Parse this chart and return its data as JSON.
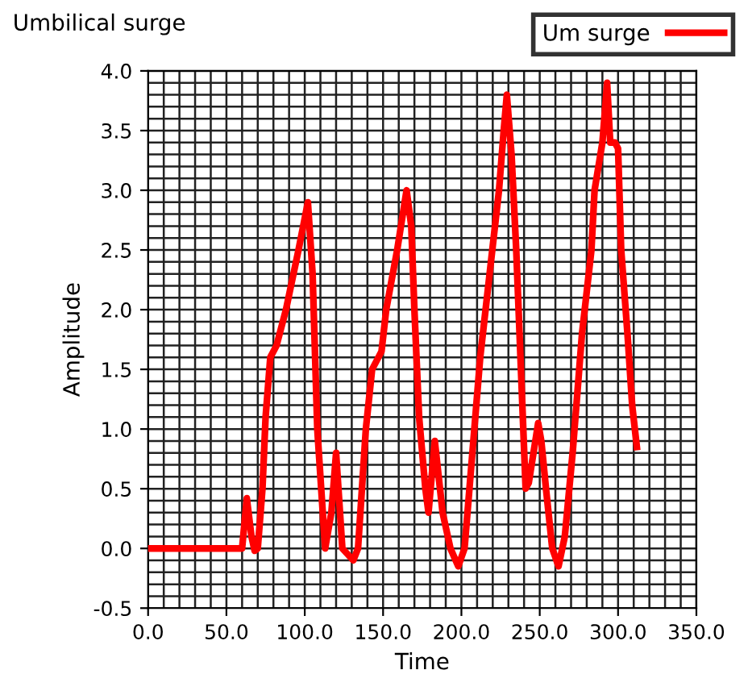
{
  "chart_data": {
    "type": "line",
    "title": "Umbilical surge",
    "xlabel": "Time",
    "ylabel": "Amplitude",
    "legend": "top right",
    "grid": true,
    "line_style": "solid",
    "marker": "none",
    "series": [
      {
        "name": "Um surge",
        "color": "#ff0000",
        "x": [
          0,
          60,
          63,
          66,
          68,
          70,
          73,
          75,
          78,
          82,
          88,
          96,
          102,
          105,
          108,
          111,
          113,
          117,
          120,
          124,
          131,
          134,
          139,
          143,
          149,
          152,
          159,
          165,
          168,
          170,
          173,
          177,
          179,
          183,
          188,
          193,
          198,
          202,
          207,
          212,
          218,
          224,
          227,
          229,
          232,
          235,
          238,
          241,
          243,
          249,
          251,
          254,
          258,
          262,
          266,
          271,
          277,
          283,
          285,
          290,
          293,
          295,
          298,
          300,
          302,
          306,
          309,
          312
        ],
        "values": [
          0,
          0,
          0.42,
          0.1,
          -0.02,
          0,
          0.5,
          1.1,
          1.6,
          1.7,
          2.0,
          2.5,
          2.9,
          2.3,
          1.0,
          0.4,
          0,
          0.3,
          0.8,
          0,
          -0.1,
          0,
          1.0,
          1.5,
          1.65,
          2.0,
          2.5,
          3.0,
          2.7,
          2.0,
          1.1,
          0.5,
          0.3,
          0.9,
          0.3,
          0,
          -0.15,
          0,
          0.8,
          1.6,
          2.3,
          3.0,
          3.5,
          3.8,
          3.3,
          2.5,
          1.5,
          0.5,
          0.55,
          1.05,
          0.9,
          0.5,
          0,
          -0.15,
          0.1,
          0.8,
          1.8,
          2.5,
          3.0,
          3.4,
          3.9,
          3.4,
          3.4,
          3.35,
          2.5,
          1.8,
          1.2,
          0.85
        ]
      }
    ],
    "xlim": [
      0,
      350
    ],
    "ylim": [
      -0.5,
      4.0
    ],
    "xticks": [
      {
        "value": 0,
        "label": "0.0"
      },
      {
        "value": 10,
        "label": null
      },
      {
        "value": 20,
        "label": null
      },
      {
        "value": 30,
        "label": null
      },
      {
        "value": 40,
        "label": null
      },
      {
        "value": 50,
        "label": "50.0"
      },
      {
        "value": 60,
        "label": null
      },
      {
        "value": 70,
        "label": null
      },
      {
        "value": 80,
        "label": null
      },
      {
        "value": 90,
        "label": null
      },
      {
        "value": 100,
        "label": "100.0"
      },
      {
        "value": 110,
        "label": null
      },
      {
        "value": 120,
        "label": null
      },
      {
        "value": 130,
        "label": null
      },
      {
        "value": 140,
        "label": null
      },
      {
        "value": 150,
        "label": "150.0"
      },
      {
        "value": 160,
        "label": null
      },
      {
        "value": 170,
        "label": null
      },
      {
        "value": 180,
        "label": null
      },
      {
        "value": 190,
        "label": null
      },
      {
        "value": 200,
        "label": "200.0"
      },
      {
        "value": 210,
        "label": null
      },
      {
        "value": 220,
        "label": null
      },
      {
        "value": 230,
        "label": null
      },
      {
        "value": 240,
        "label": null
      },
      {
        "value": 250,
        "label": "250.0"
      },
      {
        "value": 260,
        "label": null
      },
      {
        "value": 270,
        "label": null
      },
      {
        "value": 280,
        "label": null
      },
      {
        "value": 290,
        "label": null
      },
      {
        "value": 300,
        "label": "300.0"
      },
      {
        "value": 310,
        "label": null
      },
      {
        "value": 320,
        "label": null
      },
      {
        "value": 330,
        "label": null
      },
      {
        "value": 340,
        "label": null
      },
      {
        "value": 350,
        "label": "350.0"
      }
    ],
    "yticks": [
      {
        "value": -0.5,
        "label": "-0.5"
      },
      {
        "value": -0.4,
        "label": null
      },
      {
        "value": -0.3,
        "label": null
      },
      {
        "value": -0.2,
        "label": null
      },
      {
        "value": -0.1,
        "label": null
      },
      {
        "value": 0,
        "label": "0.0"
      },
      {
        "value": 0.1,
        "label": null
      },
      {
        "value": 0.2,
        "label": null
      },
      {
        "value": 0.3,
        "label": null
      },
      {
        "value": 0.4,
        "label": null
      },
      {
        "value": 0.5,
        "label": "0.5"
      },
      {
        "value": 0.6,
        "label": null
      },
      {
        "value": 0.7,
        "label": null
      },
      {
        "value": 0.8,
        "label": null
      },
      {
        "value": 0.9,
        "label": null
      },
      {
        "value": 1.0,
        "label": "1.0"
      },
      {
        "value": 1.1,
        "label": null
      },
      {
        "value": 1.2,
        "label": null
      },
      {
        "value": 1.3,
        "label": null
      },
      {
        "value": 1.4,
        "label": null
      },
      {
        "value": 1.5,
        "label": "1.5"
      },
      {
        "value": 1.6,
        "label": null
      },
      {
        "value": 1.7,
        "label": null
      },
      {
        "value": 1.8,
        "label": null
      },
      {
        "value": 1.9,
        "label": null
      },
      {
        "value": 2.0,
        "label": "2.0"
      },
      {
        "value": 2.1,
        "label": null
      },
      {
        "value": 2.2,
        "label": null
      },
      {
        "value": 2.3,
        "label": null
      },
      {
        "value": 2.4,
        "label": null
      },
      {
        "value": 2.5,
        "label": "2.5"
      },
      {
        "value": 2.6,
        "label": null
      },
      {
        "value": 2.7,
        "label": null
      },
      {
        "value": 2.8,
        "label": null
      },
      {
        "value": 2.9,
        "label": null
      },
      {
        "value": 3.0,
        "label": "3.0"
      },
      {
        "value": 3.1,
        "label": null
      },
      {
        "value": 3.2,
        "label": null
      },
      {
        "value": 3.3,
        "label": null
      },
      {
        "value": 3.4,
        "label": null
      },
      {
        "value": 3.5,
        "label": "3.5"
      },
      {
        "value": 3.6,
        "label": null
      },
      {
        "value": 3.7,
        "label": null
      },
      {
        "value": 3.8,
        "label": null
      },
      {
        "value": 3.9,
        "label": null
      },
      {
        "value": 4.0,
        "label": "4.0"
      }
    ]
  }
}
